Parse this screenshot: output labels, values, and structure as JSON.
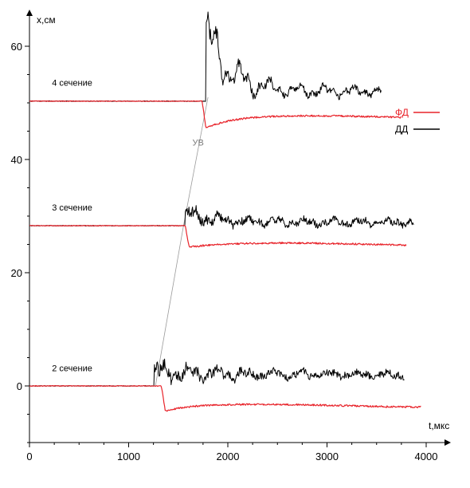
{
  "chart_data": {
    "type": "line",
    "xlabel": "t,мкс",
    "ylabel": "x,см",
    "xlim": [
      0,
      4200
    ],
    "ylim": [
      -10,
      66
    ],
    "xticks": [
      0,
      1000,
      2000,
      3000,
      4000
    ],
    "yticks": [
      0,
      20,
      40,
      60
    ],
    "grid": false,
    "legend_position": "right",
    "colors": {
      "fd": "#e8232a",
      "dd": "#000000",
      "uv": "#9a9a9a",
      "axis": "#000000"
    },
    "legend": [
      {
        "label": "ФД",
        "color": "#e8232a",
        "series": "fd"
      },
      {
        "label": "ДД",
        "color": "#000000",
        "series": "dd"
      }
    ],
    "annotations": [
      {
        "text": "4 сечение",
        "x": 430,
        "y": 53
      },
      {
        "text": "3 сечение",
        "x": 430,
        "y": 31
      },
      {
        "text": "2 сечение",
        "x": 430,
        "y": 2.6
      },
      {
        "text": "УВ",
        "x": 1700,
        "y": 42.5,
        "color": "#7a7a7a"
      }
    ],
    "shock_line": {
      "name": "УВ",
      "x": [
        1270,
        1550,
        1800
      ],
      "y": [
        0,
        28,
        51
      ]
    },
    "series": [
      {
        "key": "dd4",
        "type": "dd",
        "section": "4 сечение",
        "color": "#000000",
        "x0": 0,
        "t_start": 1780,
        "t_end": 3550,
        "baseline": 50.3,
        "peak": 62.6,
        "amp_start": 6.0,
        "amp_end": 0.8,
        "level_end": 52.0,
        "decay": 380,
        "noise": 1.2,
        "seed": 11
      },
      {
        "key": "fd4",
        "type": "fd",
        "section": "4 сечение",
        "color": "#e8232a",
        "x0": 0,
        "t_start": 1740,
        "t_end": 3750,
        "baseline": 50.3,
        "dip": 45.5,
        "level_end": 47.5,
        "recover": 250,
        "noise": 0.15,
        "seed": 12
      },
      {
        "key": "dd3",
        "type": "dd",
        "section": "3 сечение",
        "color": "#000000",
        "x0": 0,
        "t_start": 1570,
        "t_end": 3880,
        "baseline": 28.3,
        "peak": 30.5,
        "amp_start": 1.5,
        "amp_end": 0.6,
        "level_end": 28.9,
        "decay": 500,
        "noise": 0.8,
        "seed": 21
      },
      {
        "key": "fd3",
        "type": "fd",
        "section": "3 сечение",
        "color": "#e8232a",
        "x0": 0,
        "t_start": 1570,
        "t_end": 3800,
        "baseline": 28.3,
        "dip": 24.5,
        "level_end": 25.0,
        "recover": 250,
        "noise": 0.15,
        "seed": 22
      },
      {
        "key": "dd2",
        "type": "dd",
        "section": "2 сечение",
        "color": "#000000",
        "x0": 0,
        "t_start": 1260,
        "t_end": 3780,
        "baseline": 0.0,
        "peak": 2.5,
        "amp_start": 2.0,
        "amp_end": 0.5,
        "level_end": 2.0,
        "decay": 700,
        "noise": 1.0,
        "seed": 31
      },
      {
        "key": "fd2",
        "type": "fd",
        "section": "2 сечение",
        "color": "#e8232a",
        "x0": 0,
        "t_start": 1330,
        "t_end": 3950,
        "baseline": 0.0,
        "dip": -4.5,
        "level_end": -3.5,
        "recover": 200,
        "noise": 0.15,
        "seed": 32
      }
    ]
  }
}
